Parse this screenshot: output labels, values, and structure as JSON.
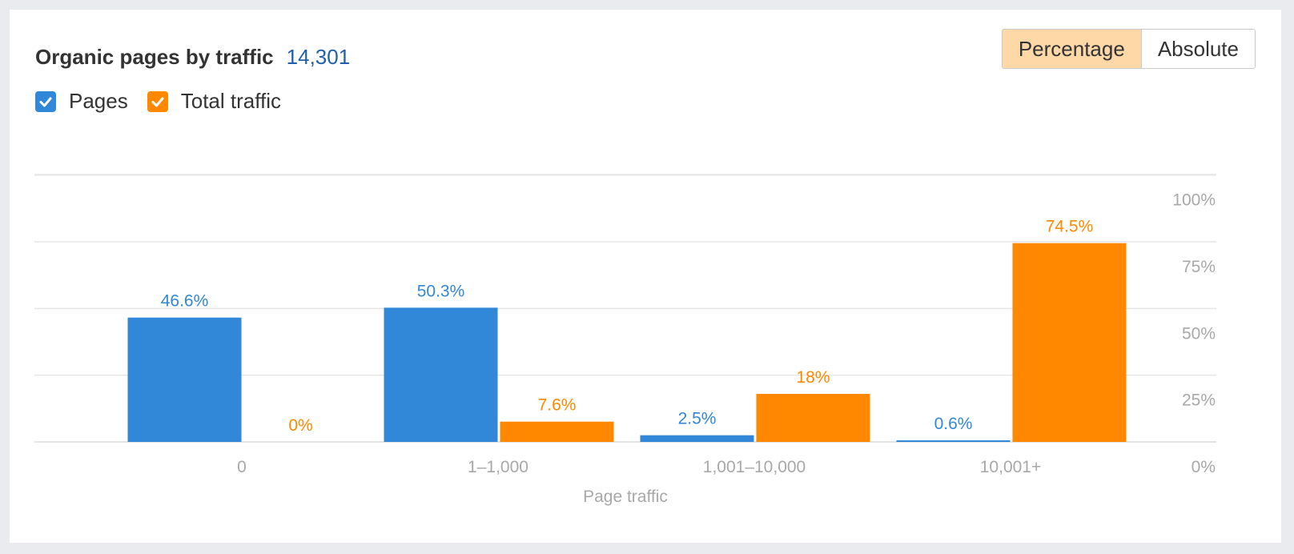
{
  "header": {
    "title": "Organic pages by traffic",
    "total": "14,301"
  },
  "toggle": {
    "options": [
      "Percentage",
      "Absolute"
    ],
    "selected": "Percentage"
  },
  "legend": {
    "items": [
      {
        "label": "Pages",
        "color": "#3187d8",
        "checked": true
      },
      {
        "label": "Total traffic",
        "color": "#ff8800",
        "checked": true
      }
    ]
  },
  "chart_data": {
    "type": "bar",
    "categories": [
      "0",
      "1–1,000",
      "1,001–10,000",
      "10,001+"
    ],
    "series": [
      {
        "name": "Pages",
        "color": "#3187d8",
        "values": [
          46.6,
          50.3,
          2.5,
          0.6
        ],
        "labels": [
          "46.6%",
          "50.3%",
          "2.5%",
          "0.6%"
        ]
      },
      {
        "name": "Total traffic",
        "color": "#ff8800",
        "values": [
          0,
          7.6,
          18,
          74.5
        ],
        "labels": [
          "0%",
          "7.6%",
          "18%",
          "74.5%"
        ]
      }
    ],
    "xlabel": "Page traffic",
    "ylabel": "",
    "ylim": [
      0,
      100
    ],
    "yticks": [
      "0%",
      "25%",
      "50%",
      "75%",
      "100%"
    ],
    "y_axis_position": "right",
    "grid": true
  }
}
